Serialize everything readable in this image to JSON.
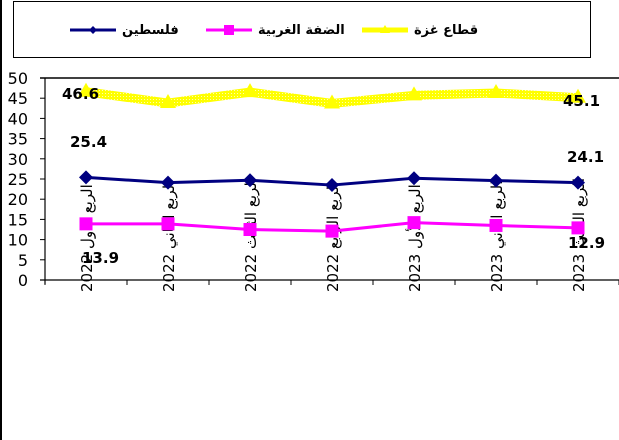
{
  "legend": {
    "items": [
      {
        "label": "فلسطين",
        "color": "#000080",
        "marker": "diamond"
      },
      {
        "label": "الضفة الغربية",
        "color": "#FF00FF",
        "marker": "square"
      },
      {
        "label": "قطاع غزة",
        "color": "#FFFF00",
        "marker": "triangle"
      }
    ]
  },
  "chart_data": {
    "type": "line",
    "title": "",
    "xlabel": "",
    "ylabel": "",
    "ylim": [
      0,
      50
    ],
    "yticks": [
      0,
      5,
      10,
      15,
      20,
      25,
      30,
      35,
      40,
      45,
      50
    ],
    "grid": false,
    "legend_position": "top",
    "categories": [
      "الربع الاول 2022",
      "الربع الثاني 2022",
      "الربع الثالث 2022",
      "الربع الرابع 2022",
      "الربع الأول 2023",
      "الربع الثاني 2023",
      "الربع الثالث 2023"
    ],
    "series": [
      {
        "name": "فلسطين",
        "color": "#000080",
        "marker": "diamond",
        "values": [
          25.4,
          24.1,
          24.7,
          23.5,
          25.2,
          24.6,
          24.1
        ]
      },
      {
        "name": "الضفة الغربية",
        "color": "#FF00FF",
        "marker": "square",
        "values": [
          13.9,
          13.9,
          12.5,
          12.1,
          14.2,
          13.5,
          12.9
        ]
      },
      {
        "name": "قطاع غزة",
        "color": "#FFFF00",
        "marker": "triangle",
        "values": [
          46.6,
          43.8,
          46.5,
          43.7,
          45.7,
          46.3,
          45.1
        ]
      }
    ],
    "annotations": [
      {
        "text": "46.6",
        "series": "قطاع غزة",
        "index": 0
      },
      {
        "text": "45.1",
        "series": "قطاع غزة",
        "index": 6
      },
      {
        "text": "25.4",
        "series": "فلسطين",
        "index": 0
      },
      {
        "text": "24.1",
        "series": "فلسطين",
        "index": 6
      },
      {
        "text": "13.9",
        "series": "الضفة الغربية",
        "index": 0
      },
      {
        "text": "12.9",
        "series": "الضفة الغربية",
        "index": 6
      }
    ]
  }
}
